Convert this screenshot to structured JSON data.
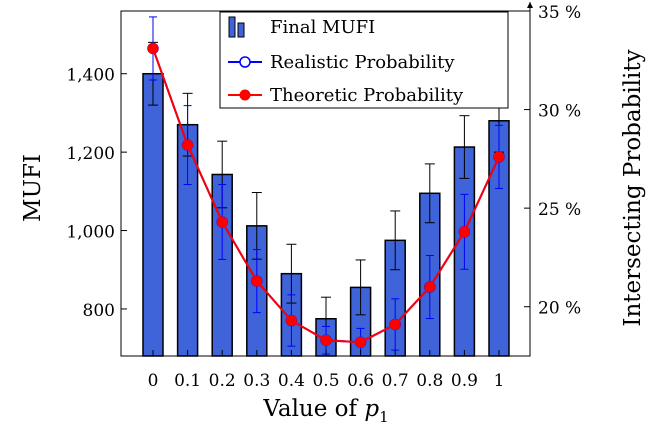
{
  "chart_data": {
    "type": "bar",
    "xlabel": "Value of p1",
    "xlabel_parts": {
      "prefix": "Value of ",
      "var": "p",
      "sub": "1"
    },
    "ylabel": "MUFI",
    "y2label": "Intersecting Probability",
    "categories": [
      "0",
      "0.1",
      "0.2",
      "0.3",
      "0.4",
      "0.5",
      "0.6",
      "0.7",
      "0.8",
      "0.9",
      "1"
    ],
    "ylim": [
      680,
      1560
    ],
    "y_ticks": [
      800,
      1000,
      1200,
      1400
    ],
    "y_tick_labels": [
      "800",
      "1,000",
      "1,200",
      "1,400"
    ],
    "y2lim": [
      17.5,
      35
    ],
    "y2_ticks": [
      20,
      25,
      30,
      35
    ],
    "y2_tick_labels": [
      "20 %",
      "25 %",
      "30 %",
      "35 %"
    ],
    "grid": false,
    "legend_position": "top-right",
    "series": [
      {
        "name": "Final MUFI",
        "axis": "left",
        "kind": "bar",
        "values": [
          1400,
          1270,
          1143,
          1012,
          890,
          775,
          855,
          975,
          1095,
          1213,
          1280
        ],
        "error": [
          80,
          80,
          85,
          85,
          75,
          55,
          70,
          75,
          75,
          80,
          80
        ],
        "color": "#3f63d8"
      },
      {
        "name": "Realistic Probability",
        "axis": "right",
        "kind": "line",
        "values": [
          33.1,
          28.2,
          24.3,
          21.3,
          19.3,
          18.3,
          18.2,
          19.1,
          21.0,
          23.8,
          27.6
        ],
        "error": [
          1.6,
          2.0,
          1.9,
          1.6,
          1.3,
          0.7,
          0.7,
          1.3,
          1.6,
          1.9,
          1.6
        ],
        "color": "#0000ff"
      },
      {
        "name": "Theoretic Probability",
        "axis": "right",
        "kind": "line",
        "values": [
          33.1,
          28.2,
          24.3,
          21.3,
          19.3,
          18.3,
          18.2,
          19.1,
          21.0,
          23.8,
          27.6
        ],
        "color": "#ff0000"
      }
    ]
  }
}
